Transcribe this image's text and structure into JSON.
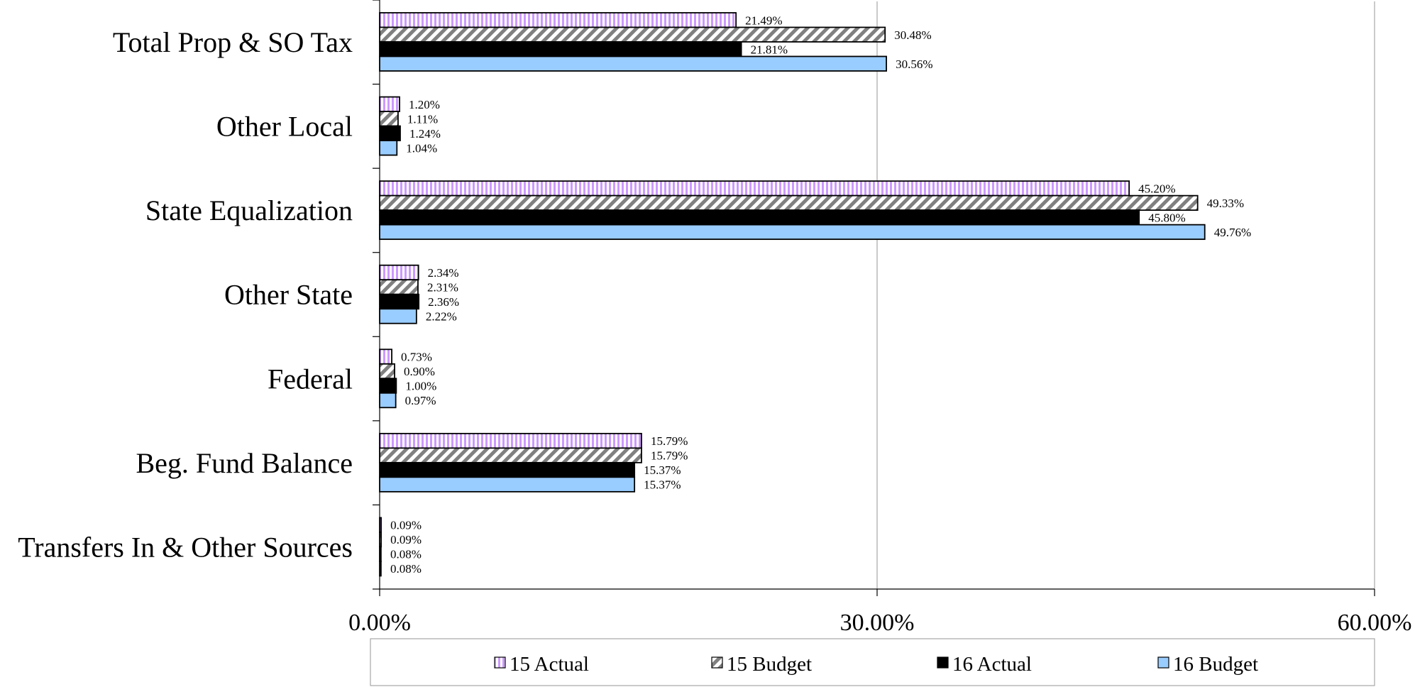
{
  "chart_data": {
    "type": "bar",
    "orientation": "horizontal",
    "categories": [
      "Total Prop & SO Tax",
      "Other Local",
      "State Equalization",
      "Other State",
      "Federal",
      "Beg. Fund Balance",
      "Transfers In & Other Sources"
    ],
    "series": [
      {
        "name": "15 Actual",
        "pattern": "vertical-stripes",
        "color": "#cc99ff",
        "values": [
          21.49,
          1.2,
          45.2,
          2.34,
          0.73,
          15.79,
          0.09
        ],
        "labels": [
          "21.49%",
          "1.20%",
          "45.20%",
          "2.34%",
          "0.73%",
          "15.79%",
          "0.09%"
        ]
      },
      {
        "name": "15 Budget",
        "pattern": "diagonal-stripes",
        "color": "#808080",
        "values": [
          30.48,
          1.11,
          49.33,
          2.31,
          0.9,
          15.79,
          0.09
        ],
        "labels": [
          "30.48%",
          "1.11%",
          "49.33%",
          "2.31%",
          "0.90%",
          "15.79%",
          "0.09%"
        ]
      },
      {
        "name": "16 Actual",
        "pattern": "solid",
        "color": "#000000",
        "values": [
          21.81,
          1.24,
          45.8,
          2.36,
          1.0,
          15.37,
          0.08
        ],
        "labels": [
          "21.81%",
          "1.24%",
          "45.80%",
          "2.36%",
          "1.00%",
          "15.37%",
          "0.08%"
        ]
      },
      {
        "name": "16 Budget",
        "pattern": "solid",
        "color": "#99ccff",
        "values": [
          30.56,
          1.04,
          49.76,
          2.22,
          0.97,
          15.37,
          0.08
        ],
        "labels": [
          "30.56%",
          "1.04%",
          "49.76%",
          "2.22%",
          "0.97%",
          "15.37%",
          "0.08%"
        ]
      }
    ],
    "xlim": [
      0,
      60
    ],
    "xticks": [
      "0.00%",
      "30.00%",
      "60.00%"
    ],
    "grid": true,
    "legend_position": "bottom"
  }
}
